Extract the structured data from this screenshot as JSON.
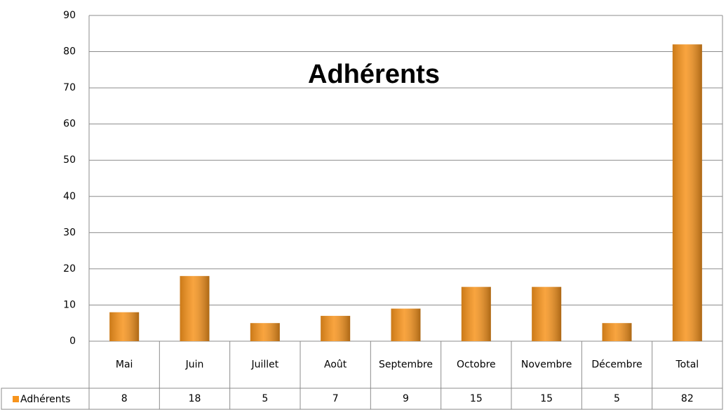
{
  "chart_data": {
    "type": "bar",
    "title": "Adhérents",
    "categories": [
      "Mai",
      "Juin",
      "Juillet",
      "Août",
      "Septembre",
      "Octobre",
      "Novembre",
      "Décembre",
      "Total"
    ],
    "series": [
      {
        "name": "Adhérents",
        "color": "#f7941d",
        "values": [
          8,
          18,
          5,
          7,
          9,
          15,
          15,
          5,
          82
        ]
      }
    ],
    "ylim": [
      0,
      90
    ],
    "yticks": [
      0,
      10,
      20,
      30,
      40,
      50,
      60,
      70,
      80,
      90
    ],
    "grid": true
  }
}
